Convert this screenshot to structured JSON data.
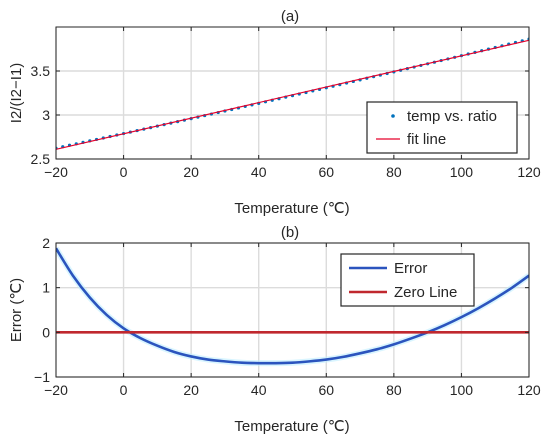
{
  "chart_data": [
    {
      "type": "scatter",
      "title": "(a)",
      "xlabel": "Temperature (℃)",
      "ylabel": "I2/(I2−I1)",
      "xlim": [
        -20,
        120
      ],
      "ylim": [
        2.5,
        4.0
      ],
      "xticks": [
        -20,
        0,
        20,
        40,
        60,
        80,
        100,
        120
      ],
      "xtick_labels": [
        "−20",
        "0",
        "20",
        "40",
        "60",
        "80",
        "100",
        "120"
      ],
      "yticks": [
        2.5,
        3,
        3.5
      ],
      "ytick_labels": [
        "2.5",
        "3",
        "3.5"
      ],
      "grid": true,
      "legend_position": "bottom-right",
      "series": [
        {
          "name": "temp vs. ratio",
          "kind": "points",
          "color": "#0072BD",
          "x_start": -20,
          "x_end": 120,
          "x_step": 2,
          "y_function": "2.79 + 0.00885*x + 0.0000045*(x-50)^2 - 0.012"
        },
        {
          "name": "fit line",
          "kind": "line",
          "color": "#e5002b",
          "x": [
            -20,
            120
          ],
          "y": [
            2.61,
            3.849
          ]
        }
      ]
    },
    {
      "type": "line",
      "title": "(b)",
      "xlabel": "Temperature (℃)",
      "ylabel": "Error (℃)",
      "xlim": [
        -20,
        120
      ],
      "ylim": [
        -1,
        2
      ],
      "xticks": [
        -20,
        0,
        20,
        40,
        60,
        80,
        100,
        120
      ],
      "xtick_labels": [
        "−20",
        "0",
        "20",
        "40",
        "60",
        "80",
        "100",
        "120"
      ],
      "yticks": [
        -1,
        0,
        1,
        2
      ],
      "ytick_labels": [
        "−1",
        "0",
        "1",
        "2"
      ],
      "grid": true,
      "legend_position": "top-right",
      "series": [
        {
          "name": "Error",
          "color": "#2b54be",
          "x": [
            -20,
            -15,
            -10,
            -5,
            0,
            5,
            10,
            15,
            20,
            25,
            30,
            35,
            40,
            45,
            50,
            55,
            60,
            65,
            70,
            75,
            80,
            85,
            90,
            95,
            100,
            105,
            110,
            115,
            120
          ],
          "y": [
            1.88,
            1.27,
            0.78,
            0.39,
            0.09,
            -0.13,
            -0.3,
            -0.44,
            -0.54,
            -0.61,
            -0.65,
            -0.68,
            -0.69,
            -0.69,
            -0.68,
            -0.65,
            -0.61,
            -0.55,
            -0.47,
            -0.38,
            -0.27,
            -0.14,
            0.0,
            0.16,
            0.34,
            0.54,
            0.76,
            1.0,
            1.27
          ]
        },
        {
          "name": "Zero Line",
          "color": "#c0282e",
          "x": [
            -20,
            120
          ],
          "y": [
            0,
            0
          ]
        }
      ]
    }
  ]
}
